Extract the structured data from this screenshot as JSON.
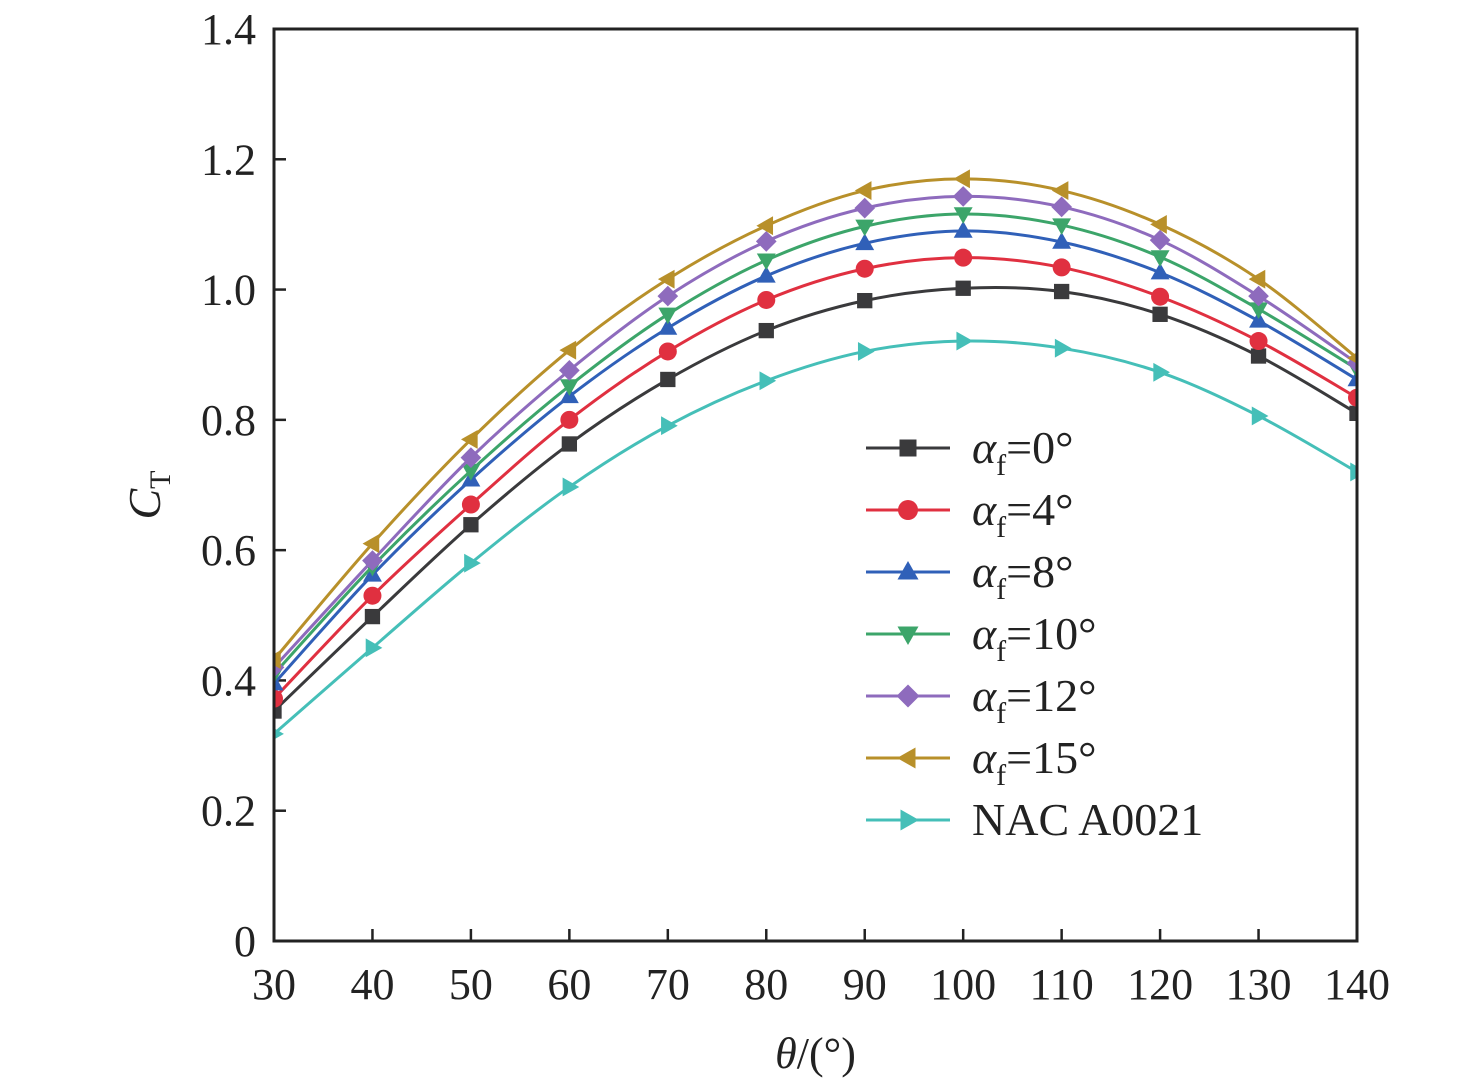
{
  "chart_data": {
    "type": "line",
    "xlabel_symbol": "θ",
    "xlabel_unit": "/(°)",
    "ylabel_main": "C",
    "ylabel_sub": "T",
    "xlim": [
      30,
      140
    ],
    "ylim": [
      0,
      1.4
    ],
    "x_ticks": [
      "30",
      "40",
      "50",
      "60",
      "70",
      "80",
      "90",
      "100",
      "110",
      "120",
      "130",
      "140"
    ],
    "y_ticks": [
      "0",
      "0.2",
      "0.4",
      "0.6",
      "0.8",
      "1.0",
      "1.2",
      "1.4"
    ],
    "grid": false,
    "legend_position": "right-center",
    "x": [
      30,
      40,
      50,
      60,
      70,
      80,
      90,
      100,
      110,
      120,
      130,
      140
    ],
    "series": [
      {
        "name": "α_f=0°",
        "label_main": "α",
        "label_sub": "f",
        "label_rest": "=0°",
        "color": "#3a3a3c",
        "marker": "square",
        "values": [
          0.353,
          0.498,
          0.639,
          0.763,
          0.862,
          0.937,
          0.983,
          1.002,
          0.997,
          0.962,
          0.898,
          0.81
        ]
      },
      {
        "name": "α_f=4°",
        "label_main": "α",
        "label_sub": "f",
        "label_rest": "=4°",
        "color": "#e03040",
        "marker": "circle",
        "values": [
          0.372,
          0.53,
          0.67,
          0.8,
          0.905,
          0.984,
          1.032,
          1.049,
          1.034,
          0.989,
          0.921,
          0.834
        ]
      },
      {
        "name": "α_f=8°",
        "label_main": "α",
        "label_sub": "f",
        "label_rest": "=8°",
        "color": "#3060b8",
        "marker": "triangle-up",
        "values": [
          0.395,
          0.562,
          0.708,
          0.836,
          0.941,
          1.021,
          1.071,
          1.09,
          1.073,
          1.026,
          0.952,
          0.862
        ]
      },
      {
        "name": "α_f=10°",
        "label_main": "α",
        "label_sub": "f",
        "label_rest": "=10°",
        "color": "#3ca56a",
        "marker": "triangle-down",
        "values": [
          0.41,
          0.575,
          0.722,
          0.852,
          0.962,
          1.045,
          1.097,
          1.116,
          1.099,
          1.05,
          0.97,
          0.878
        ]
      },
      {
        "name": "α_f=12°",
        "label_main": "α",
        "label_sub": "f",
        "label_rest": "=12°",
        "color": "#8e6bbd",
        "marker": "diamond",
        "values": [
          0.42,
          0.584,
          0.742,
          0.876,
          0.99,
          1.074,
          1.125,
          1.143,
          1.127,
          1.076,
          0.99,
          0.887
        ]
      },
      {
        "name": "α_f=15°",
        "label_main": "α",
        "label_sub": "f",
        "label_rest": "=15°",
        "color": "#b8902a",
        "marker": "triangle-left",
        "values": [
          0.432,
          0.61,
          0.77,
          0.907,
          1.016,
          1.098,
          1.152,
          1.17,
          1.152,
          1.1,
          1.016,
          0.895
        ]
      },
      {
        "name": "NAC A0021",
        "label_main": "NAC A0021",
        "label_sub": "",
        "label_rest": "",
        "color": "#45bfb8",
        "marker": "triangle-right",
        "values": [
          0.318,
          0.45,
          0.58,
          0.697,
          0.791,
          0.86,
          0.905,
          0.921,
          0.91,
          0.873,
          0.806,
          0.72
        ]
      }
    ]
  }
}
